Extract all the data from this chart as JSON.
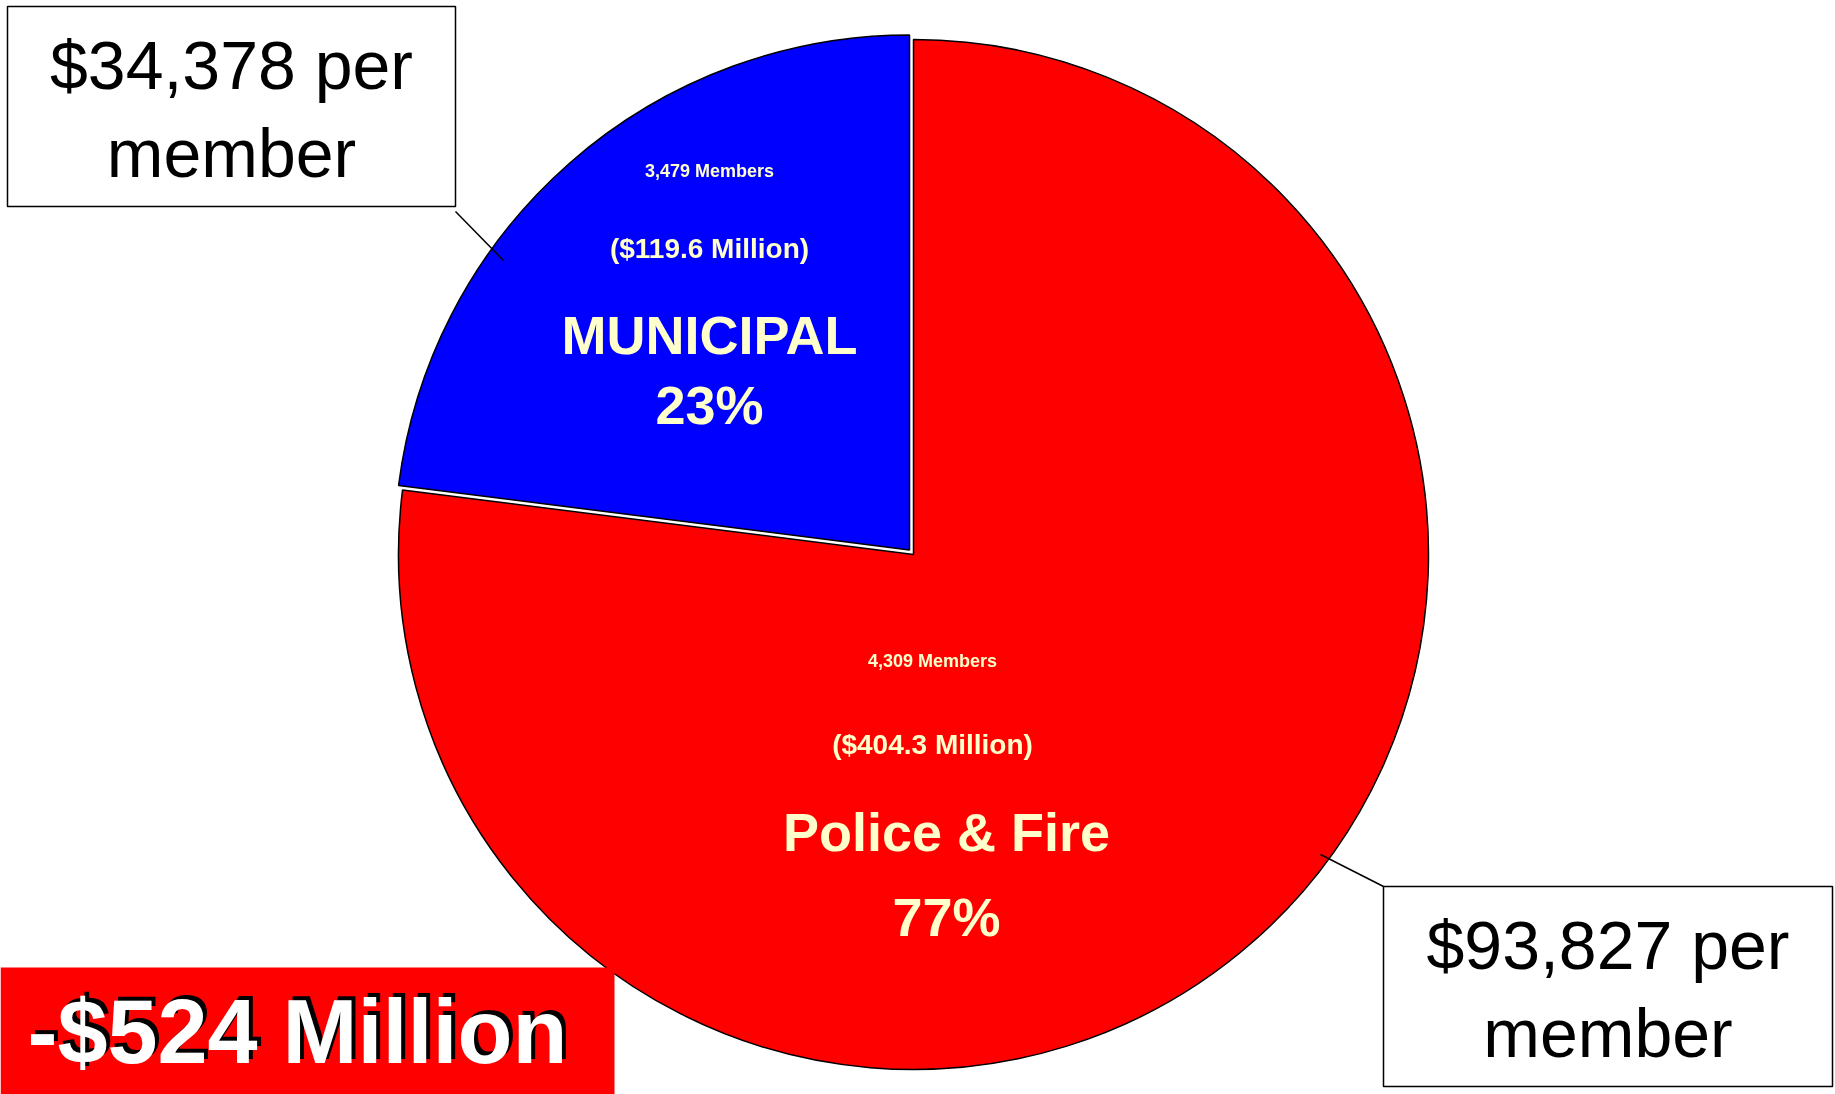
{
  "chart_data": {
    "type": "pie",
    "categories": [
      "MUNICIPAL",
      "Police & Fire"
    ],
    "values": [
      23,
      77
    ],
    "colors": [
      "#0000ff",
      "#ff0000"
    ],
    "value_labels": [
      "23%",
      "77%"
    ],
    "annotations": [
      "3,479 Members",
      "($119.6 Million)",
      "4,309 Members",
      "($404.3 Million)",
      "$34,378 per member",
      "$93,827 per member",
      "-$524 Million"
    ]
  }
}
